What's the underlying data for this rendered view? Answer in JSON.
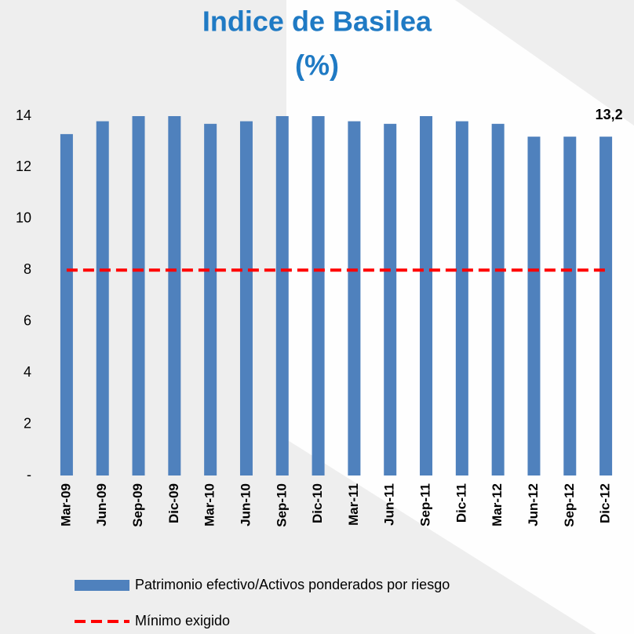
{
  "chart_data": {
    "type": "bar",
    "title": "Indice de Basilea",
    "subtitle": "(%)",
    "categories": [
      "Mar-09",
      "Jun-09",
      "Sep-09",
      "Dic-09",
      "Mar-10",
      "Jun-10",
      "Sep-10",
      "Dic-10",
      "Mar-11",
      "Jun-11",
      "Sep-11",
      "Dic-11",
      "Mar-12",
      "Jun-12",
      "Sep-12",
      "Dic-12"
    ],
    "series": [
      {
        "name": "Patrimonio efectivo/Activos ponderados por riesgo",
        "type": "bar",
        "color": "#4f81bd",
        "values": [
          13.3,
          13.8,
          14.0,
          14.0,
          13.7,
          13.8,
          14.0,
          14.0,
          13.8,
          13.7,
          14.0,
          13.8,
          13.7,
          13.2,
          13.2,
          13.2
        ],
        "value_labels": [
          null,
          null,
          null,
          null,
          null,
          null,
          null,
          null,
          null,
          null,
          null,
          null,
          null,
          null,
          null,
          "13,2"
        ]
      },
      {
        "name": "Mínimo exigido",
        "type": "line",
        "color": "#ff0000",
        "dashed": true,
        "values": [
          8,
          8,
          8,
          8,
          8,
          8,
          8,
          8,
          8,
          8,
          8,
          8,
          8,
          8,
          8,
          8
        ]
      }
    ],
    "ylim": [
      0,
      14
    ],
    "yticks": [
      {
        "value": 0,
        "label": "-"
      },
      2,
      4,
      6,
      8,
      10,
      12,
      14
    ],
    "grid": false
  }
}
